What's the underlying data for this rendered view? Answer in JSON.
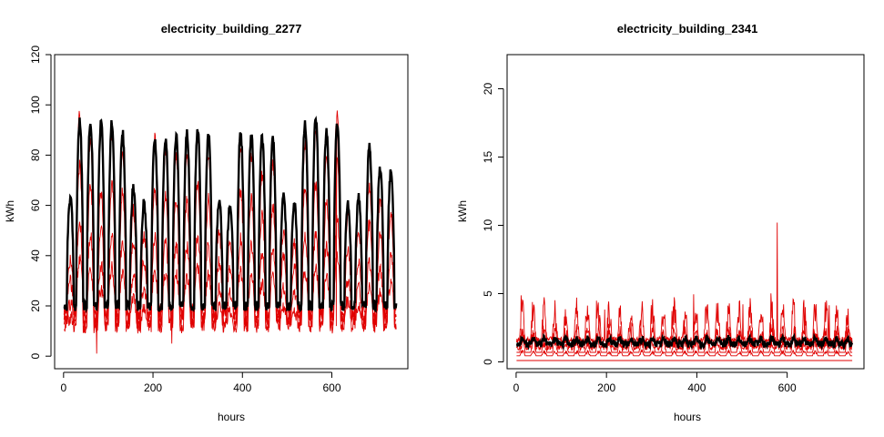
{
  "colors": {
    "background": "#ffffff",
    "axis": "#000000",
    "series_black": "#000000",
    "series_red": "#e00000"
  },
  "chart_data": [
    {
      "type": "line",
      "title": "electricity_building_2277",
      "xlabel": "hours",
      "ylabel": "kWh",
      "xlim": [
        -20,
        770
      ],
      "ylim": [
        -5,
        120
      ],
      "x_ticks": [
        "0",
        "200",
        "400",
        "600"
      ],
      "y_ticks": [
        "0",
        "20",
        "40",
        "60",
        "80",
        "100",
        "120"
      ],
      "x_range_data": [
        1,
        744
      ],
      "grid": false,
      "series_style": [
        {
          "color": "black",
          "kind": "thick",
          "baseline": 20,
          "noise": 2
        },
        {
          "color": "red",
          "kind": "thin",
          "baseline": 18,
          "noise": 3
        }
      ],
      "daily_peaks": {
        "hours": [
          15,
          36,
          60,
          84,
          108,
          132,
          156,
          180,
          204,
          228,
          252,
          276,
          300,
          324,
          348,
          372,
          396,
          420,
          444,
          468,
          492,
          516,
          540,
          564,
          588,
          612,
          636,
          660,
          684,
          708,
          732
        ],
        "black": [
          63,
          93,
          93,
          93,
          93,
          89,
          67,
          61,
          86,
          87,
          88,
          89,
          91,
          88,
          62,
          60,
          89,
          88,
          87,
          87,
          64,
          61,
          93,
          95,
          89,
          93,
          60,
          63,
          84,
          75,
          74
        ],
        "red": [
          38,
          97,
          87,
          65,
          88,
          83,
          58,
          48,
          86,
          81,
          80,
          79,
          88,
          80,
          48,
          45,
          84,
          80,
          72,
          77,
          50,
          45,
          85,
          88,
          79,
          99,
          55,
          50,
          68,
          62,
          72
        ]
      },
      "red_lows": [
        {
          "hour": 74,
          "value": 1
        },
        {
          "hour": 242,
          "value": 5
        },
        {
          "hour": 610,
          "value": 12
        }
      ]
    },
    {
      "type": "line",
      "title": "electricity_building_2341",
      "xlabel": "hours",
      "ylabel": "kWh",
      "xlim": [
        -20,
        770
      ],
      "ylim": [
        -0.5,
        22.5
      ],
      "x_ticks": [
        "0",
        "200",
        "400",
        "600"
      ],
      "y_ticks": [
        "0",
        "5",
        "10",
        "15",
        "20"
      ],
      "x_range_data": [
        1,
        744
      ],
      "grid": false,
      "series_style": [
        {
          "color": "black",
          "kind": "thick",
          "baseline": 1.3,
          "noise": 0.25
        },
        {
          "color": "red",
          "kind": "thin",
          "baseline": 1.2,
          "noise": 0.5
        }
      ],
      "red_spike": {
        "hour": 578,
        "value": 10.2
      },
      "red_floor": 0.1,
      "red_max_typical": 5.2
    }
  ]
}
